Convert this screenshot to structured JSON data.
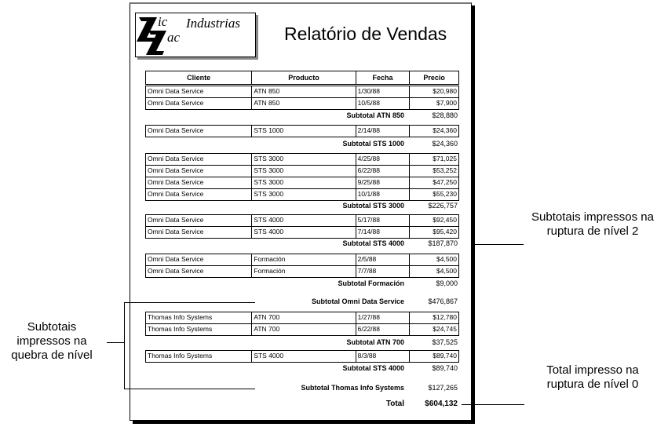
{
  "logo": {
    "text": "Zic Zac Industrias"
  },
  "title": "Relatório de Vendas",
  "columns": [
    "Cliente",
    "Producto",
    "Fecha",
    "Precio"
  ],
  "groups": [
    {
      "rows": [
        [
          "Omni Data Service",
          "ATN 850",
          "1/30/88",
          "$20,980"
        ],
        [
          "Omni Data Service",
          "ATN 850",
          "10/5/88",
          "$7,900"
        ]
      ],
      "subtotal_label": "Subtotal  ATN 850",
      "subtotal": "$28,880"
    },
    {
      "rows": [
        [
          "Omni Data Service",
          "STS 1000",
          "2/14/88",
          "$24,360"
        ]
      ],
      "subtotal_label": "Subtotal  STS 1000",
      "subtotal": "$24,360"
    },
    {
      "rows": [
        [
          "Omni Data Service",
          "STS 3000",
          "4/25/88",
          "$71,025"
        ],
        [
          "Omni Data Service",
          "STS 3000",
          "6/22/88",
          "$53,252"
        ],
        [
          "Omni Data Service",
          "STS 3000",
          "9/25/88",
          "$47,250"
        ],
        [
          "Omni Data Service",
          "STS 3000",
          "10/1/88",
          "$55,230"
        ]
      ],
      "subtotal_label": "Subtotal  STS 3000",
      "subtotal": "$226,757"
    },
    {
      "rows": [
        [
          "Omni Data Service",
          "STS 4000",
          "5/17/88",
          "$92,450"
        ],
        [
          "Omni Data Service",
          "STS 4000",
          "7/14/88",
          "$95,420"
        ]
      ],
      "subtotal_label": "Subtotal  STS 4000",
      "subtotal": "$187,870"
    },
    {
      "rows": [
        [
          "Omni Data Service",
          "Formación",
          "2/5/88",
          "$4,500"
        ],
        [
          "Omni Data Service",
          "Formación",
          "7/7/88",
          "$4,500"
        ]
      ],
      "subtotal_label": "Subtotal Formación",
      "subtotal": "$9,000"
    },
    {
      "rows": [
        [
          "Thomas Info Systems",
          "ATN 700",
          "1/27/88",
          "$12,780"
        ],
        [
          "Thomas Info Systems",
          "ATN 700",
          "6/22/88",
          "$24,745"
        ]
      ],
      "subtotal_label": "Subtotal ATN 700",
      "subtotal": "$37,525"
    },
    {
      "rows": [
        [
          "Thomas Info Systems",
          "STS 4000",
          "8/3/88",
          "$89,740"
        ]
      ],
      "subtotal_label": "Subtotal STS 4000",
      "subtotal": "$89,740"
    }
  ],
  "client_subtotals": [
    {
      "label": "Subtotal Omni Data Service",
      "value": "$476,867"
    },
    {
      "label": "Subtotal Thomas Info Systems",
      "value": "$127,265"
    }
  ],
  "total": {
    "label": "Total",
    "value": "$604,132"
  },
  "annotations": {
    "level2": "Subtotais impressos na ruptura de nível 2",
    "level1": "Subtotais impressos na quebra de nível",
    "level0": "Total impresso na ruptura de nível 0"
  }
}
